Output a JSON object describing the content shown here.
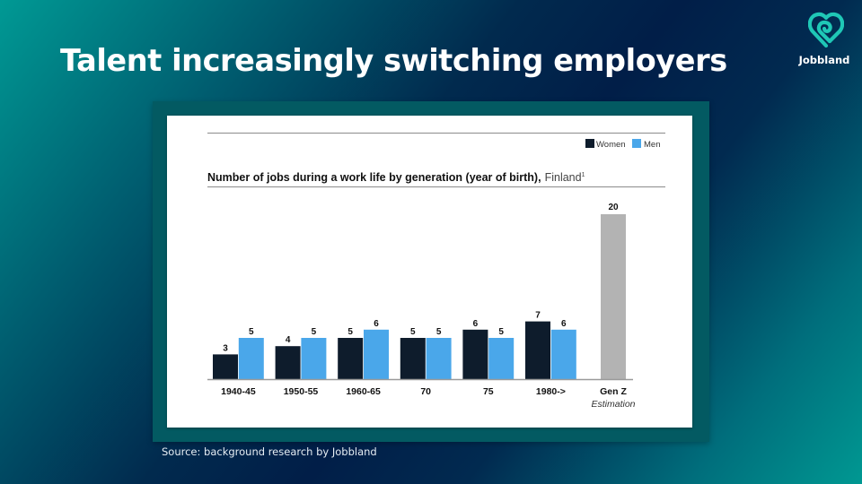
{
  "slide": {
    "title": "Talent increasingly switching employers",
    "source": "Source: background research by Jobbland"
  },
  "logo": {
    "icon": "heart-loop-icon",
    "text": "Jobbland",
    "color": "#1fc7b6"
  },
  "chart_data": {
    "type": "bar",
    "title": "Number of jobs during a work life by generation (year of birth),",
    "title_suffix": "Finland",
    "title_footnote": "1",
    "xlabel": "",
    "ylabel": "",
    "ylim": [
      0,
      20
    ],
    "grid": false,
    "legend_position": "top-right",
    "categories": [
      "1940-45",
      "1950-55",
      "1960-65",
      "70",
      "75",
      "1980->"
    ],
    "series": [
      {
        "name": "Women",
        "color": "#0e1c2c",
        "values": [
          3,
          4,
          5,
          5,
          6,
          7
        ]
      },
      {
        "name": "Men",
        "color": "#4aa7ea",
        "values": [
          5,
          5,
          6,
          5,
          5,
          6
        ]
      }
    ],
    "extra_bar": {
      "category": "Gen Z",
      "sublabel": "Estimation",
      "value": 20,
      "color": "#b3b3b3"
    }
  }
}
